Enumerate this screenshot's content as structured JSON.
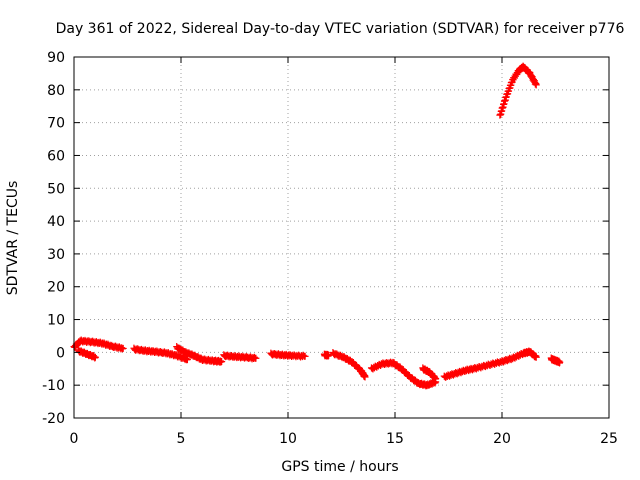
{
  "colors": {
    "series": "#ff0000",
    "grid": "#a0a0a0",
    "axis": "#000000",
    "background": "#ffffff"
  },
  "chart_data": {
    "type": "scatter",
    "title": "Day 361 of 2022, Sidereal Day-to-day VTEC variation (SDTVAR) for receiver p776",
    "xlabel": "GPS time / hours",
    "ylabel": "SDTVAR / TECUs",
    "xlim": [
      0,
      25
    ],
    "ylim": [
      -20,
      90
    ],
    "xticks": [
      0,
      5,
      10,
      15,
      20,
      25
    ],
    "yticks": [
      -20,
      -10,
      0,
      10,
      20,
      30,
      40,
      50,
      60,
      70,
      80,
      90
    ],
    "grid": true,
    "marker": "+",
    "series": [
      {
        "name": "SDTVAR",
        "segments": [
          [
            [
              0.0,
              1.5
            ],
            [
              0.3,
              3.5
            ],
            [
              0.8,
              3.2
            ],
            [
              1.3,
              2.8
            ],
            [
              1.8,
              1.8
            ],
            [
              2.3,
              1.2
            ]
          ],
          [
            [
              0.2,
              0.5
            ],
            [
              0.6,
              -0.5
            ],
            [
              1.0,
              -1.5
            ]
          ],
          [
            [
              2.8,
              1.0
            ],
            [
              3.3,
              0.5
            ],
            [
              3.8,
              0.2
            ],
            [
              4.3,
              -0.2
            ],
            [
              4.8,
              -1.0
            ],
            [
              5.3,
              -2.2
            ]
          ],
          [
            [
              4.8,
              1.5
            ],
            [
              5.2,
              0.0
            ],
            [
              5.6,
              -1.0
            ],
            [
              6.0,
              -2.2
            ],
            [
              6.5,
              -2.6
            ],
            [
              6.9,
              -2.8
            ]
          ],
          [
            [
              7.0,
              -1.0
            ],
            [
              7.5,
              -1.3
            ],
            [
              8.0,
              -1.5
            ],
            [
              8.5,
              -1.8
            ]
          ],
          [
            [
              9.2,
              -0.5
            ],
            [
              9.7,
              -0.8
            ],
            [
              10.2,
              -1.0
            ],
            [
              10.8,
              -1.2
            ]
          ],
          [
            [
              11.7,
              -0.8
            ],
            [
              11.9,
              -0.9
            ]
          ],
          [
            [
              12.1,
              -0.3
            ],
            [
              12.6,
              -1.5
            ],
            [
              13.0,
              -3.0
            ],
            [
              13.4,
              -5.5
            ],
            [
              13.6,
              -7.5
            ]
          ],
          [
            [
              13.9,
              -5.0
            ],
            [
              14.4,
              -3.5
            ],
            [
              14.9,
              -3.2
            ],
            [
              15.3,
              -5.0
            ],
            [
              15.7,
              -7.5
            ],
            [
              16.1,
              -9.5
            ],
            [
              16.5,
              -10.0
            ],
            [
              16.9,
              -9.0
            ]
          ],
          [
            [
              16.3,
              -5.0
            ],
            [
              16.6,
              -6.0
            ],
            [
              16.9,
              -8.0
            ]
          ],
          [
            [
              17.3,
              -7.5
            ],
            [
              17.8,
              -6.5
            ],
            [
              18.3,
              -5.5
            ],
            [
              18.8,
              -4.8
            ],
            [
              19.4,
              -3.8
            ],
            [
              20.0,
              -2.8
            ],
            [
              20.5,
              -1.8
            ],
            [
              21.0,
              -0.3
            ],
            [
              21.3,
              0.2
            ],
            [
              21.6,
              -1.5
            ]
          ],
          [
            [
              22.3,
              -2.0
            ],
            [
              22.5,
              -2.5
            ],
            [
              22.7,
              -3.0
            ]
          ],
          [
            [
              19.9,
              72
            ],
            [
              20.2,
              78
            ],
            [
              20.5,
              83
            ],
            [
              20.8,
              86
            ],
            [
              21.0,
              87
            ],
            [
              21.3,
              85
            ],
            [
              21.6,
              81.5
            ]
          ]
        ]
      }
    ]
  }
}
